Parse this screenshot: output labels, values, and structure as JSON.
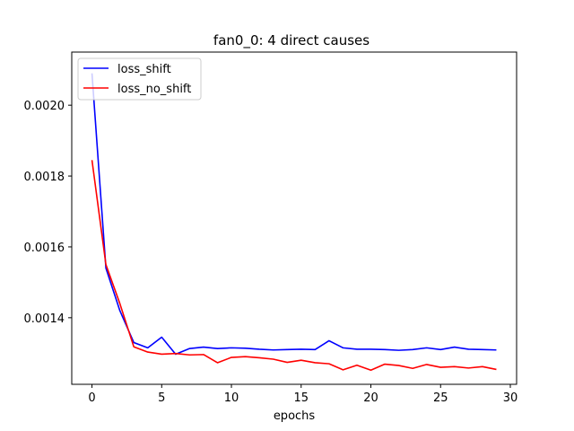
{
  "chart_data": {
    "type": "line",
    "title": "fan0_0: 4 direct causes",
    "xlabel": "epochs",
    "ylabel": "",
    "xlim": [
      -1.45,
      30.45
    ],
    "ylim": [
      0.001212,
      0.00215
    ],
    "xticks": [
      0,
      5,
      10,
      15,
      20,
      25,
      30
    ],
    "yticks": [
      0.0014,
      0.0016,
      0.0018,
      0.002
    ],
    "ytick_labels": [
      "0.0014",
      "0.0016",
      "0.0018",
      "0.0020"
    ],
    "grid": false,
    "legend_position": "top-left",
    "x": [
      0,
      1,
      2,
      3,
      4,
      5,
      6,
      7,
      8,
      9,
      10,
      11,
      12,
      13,
      14,
      15,
      16,
      17,
      18,
      19,
      20,
      21,
      22,
      23,
      24,
      25,
      26,
      27,
      28,
      29
    ],
    "series": [
      {
        "name": "loss_shift",
        "color": "#0000ff",
        "values": [
          0.00209,
          0.00154,
          0.00142,
          0.00133,
          0.001315,
          0.001345,
          0.001297,
          0.001313,
          0.001317,
          0.001313,
          0.001315,
          0.001314,
          0.001311,
          0.001309,
          0.00131,
          0.001311,
          0.00131,
          0.001335,
          0.001315,
          0.001311,
          0.001311,
          0.00131,
          0.001308,
          0.00131,
          0.001315,
          0.00131,
          0.001317,
          0.001311,
          0.00131,
          0.001309
        ]
      },
      {
        "name": "loss_no_shift",
        "color": "#ff0000",
        "values": [
          0.001845,
          0.00155,
          0.00144,
          0.001318,
          0.001303,
          0.001297,
          0.001299,
          0.001295,
          0.001296,
          0.001273,
          0.001288,
          0.00129,
          0.001287,
          0.001283,
          0.001274,
          0.00128,
          0.001273,
          0.00127,
          0.001253,
          0.001266,
          0.001252,
          0.001269,
          0.001265,
          0.001257,
          0.001268,
          0.00126,
          0.001262,
          0.001258,
          0.001262,
          0.001254
        ]
      }
    ]
  }
}
